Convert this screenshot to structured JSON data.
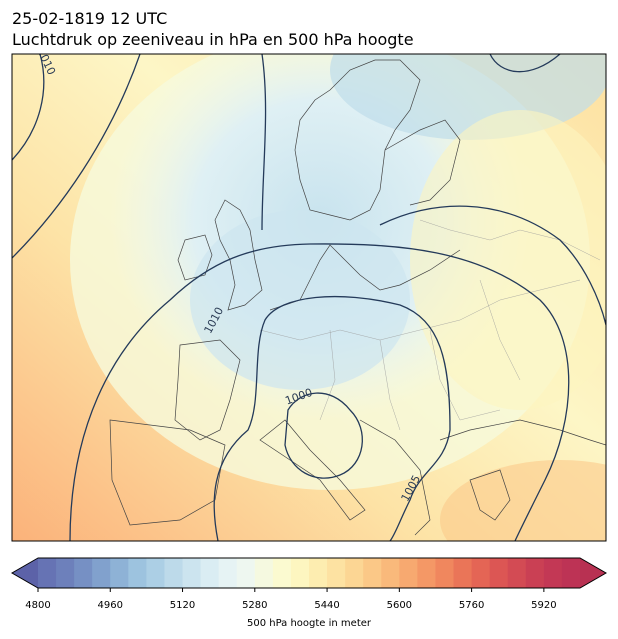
{
  "header": {
    "title": "25-02-1819 12 UTC",
    "subtitle": "Luchtdruk op zeeniveau in hPa en 500 hPa hoogte"
  },
  "contour_labels": [
    "1010",
    "1010",
    "1000",
    "1005"
  ],
  "colorbar": {
    "label": "500 hPa hoogte in meter",
    "range": [
      4800,
      6000
    ],
    "ticks": [
      4800,
      4960,
      5120,
      5280,
      5440,
      5600,
      5760,
      5920
    ],
    "under_color": "#5c62a8",
    "over_color": "#b83152",
    "colors": [
      "#6673b4",
      "#6d80bb",
      "#7690c4",
      "#81a1cd",
      "#8eb2d6",
      "#9dc3df",
      "#accfe5",
      "#bddaea",
      "#cce4ef",
      "#daedf3",
      "#e6f3f4",
      "#eef7f0",
      "#f5f9e0",
      "#fbfad0",
      "#fdf6c0",
      "#fdedb0",
      "#fde2a2",
      "#fcd694",
      "#fbc887",
      "#f9b97b",
      "#f7a970",
      "#f49866",
      "#f0875e",
      "#ea7558",
      "#e46555",
      "#dc5654",
      "#d34b54",
      "#ca4054",
      "#c33855",
      "#bd3355"
    ]
  }
}
